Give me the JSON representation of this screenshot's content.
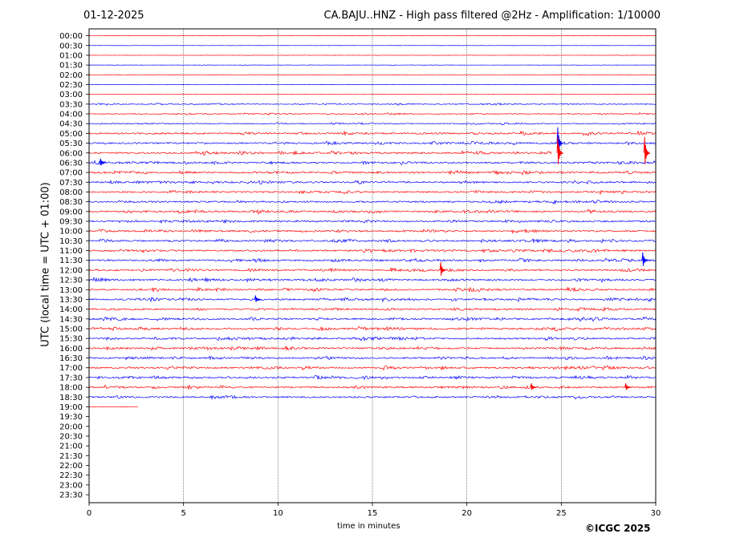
{
  "header": {
    "date": "01-12-2025",
    "title": "CA.BAJU..HNZ - High pass filtered @2Hz - Amplification: 1/10000"
  },
  "footer": {
    "copyright": "©ICGC 2025"
  },
  "colors": {
    "odd": "#ff0000",
    "even": "#0000ff",
    "axis": "#000000",
    "grid": "#000000"
  },
  "chart_data": {
    "type": "line",
    "title": "CA.BAJU..HNZ - High pass filtered @2Hz - Amplification: 1/10000",
    "xlabel": "time in minutes",
    "ylabel": "UTC (local time = UTC + 01:00)",
    "xlim": [
      0,
      30
    ],
    "x_ticks": [
      "0",
      "5",
      "10",
      "15",
      "20",
      "25",
      "30"
    ],
    "x_tick_values": [
      0,
      5,
      10,
      15,
      20,
      25,
      30
    ],
    "grid": "vertical dotted lines at 5, 10, 15, 20, 25 minutes",
    "rows": [
      "00:00",
      "00:30",
      "01:00",
      "01:30",
      "02:00",
      "02:30",
      "03:00",
      "03:30",
      "04:00",
      "04:30",
      "05:00",
      "05:30",
      "06:00",
      "06:30",
      "07:00",
      "07:30",
      "08:00",
      "08:30",
      "09:00",
      "09:30",
      "10:00",
      "10:30",
      "11:00",
      "11:30",
      "12:00",
      "12:30",
      "13:00",
      "13:30",
      "14:00",
      "14:30",
      "15:00",
      "15:30",
      "16:00",
      "16:30",
      "17:00",
      "17:30",
      "18:00",
      "18:30",
      "19:00",
      "19:30",
      "20:00",
      "20:30",
      "21:00",
      "21:30",
      "22:00",
      "22:30",
      "23:00",
      "23:30"
    ],
    "row_colors": "alternating red / blue starting with red at 00:00",
    "data_end": {
      "row": "19:00",
      "minute": 2.6
    },
    "gap": {
      "row": "06:00",
      "from_minute": 24.5,
      "to_minute": 30
    },
    "events": [
      {
        "row": "05:30",
        "minute": 24.9,
        "amplitude": "large"
      },
      {
        "row": "06:00",
        "minute": 24.9,
        "amplitude": "large"
      },
      {
        "row": "06:00",
        "minute": 29.5,
        "amplitude": "large"
      },
      {
        "row": "06:30",
        "minute": 0.7,
        "amplitude": "small"
      },
      {
        "row": "11:30",
        "minute": 29.4,
        "amplitude": "medium"
      },
      {
        "row": "12:00",
        "minute": 18.7,
        "amplitude": "medium"
      },
      {
        "row": "13:30",
        "minute": 8.9,
        "amplitude": "small"
      },
      {
        "row": "18:00",
        "minute": 23.5,
        "amplitude": "small"
      },
      {
        "row": "18:00",
        "minute": 28.5,
        "amplitude": "small"
      }
    ]
  }
}
